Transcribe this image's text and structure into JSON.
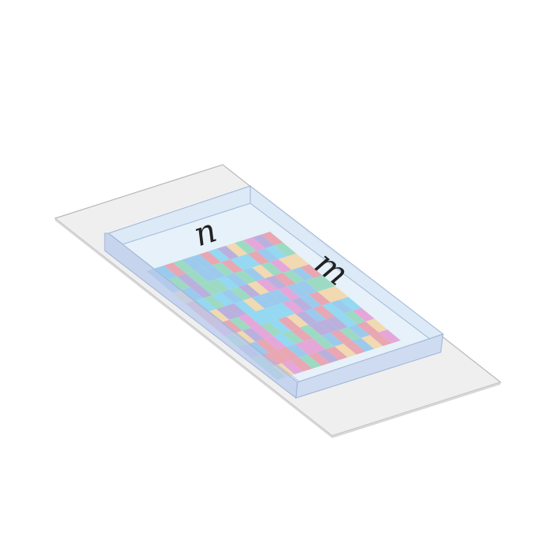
{
  "labels": {
    "n": "n",
    "m": "m"
  },
  "colors": {
    "base_plate": "#efefef",
    "base_edge": "#b8b8b8",
    "tray_floor": "#e6f1fa",
    "tray_rim_top": "#d9e8f6",
    "tray_side_front": "#c7d6f0",
    "tray_side_left": "#b9cbee",
    "tray_edge": "#9fb4d6",
    "tile_palette": [
      "#e89aa6",
      "#8fd6b8",
      "#f2d5a3",
      "#8ec3ea",
      "#b2a4d8",
      "#e49ad2",
      "#86d3f0"
    ]
  },
  "grid": {
    "rows": 10,
    "cols": 14
  }
}
